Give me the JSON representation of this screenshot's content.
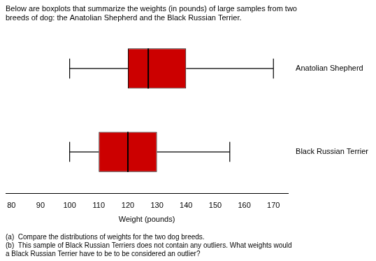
{
  "chart_data": {
    "type": "boxplot",
    "title": [
      "Below are boxplots that summarize the weights (in pounds) of large samples from two",
      "breeds of dog: the Anatolian Shepherd and the Black Russian Terrier."
    ],
    "x_label": "Weight (pounds)",
    "categories": [
      "Anatolian Shepherd",
      "Black Russian Terrier"
    ],
    "stats": [
      {
        "whisker_low": 100,
        "q1": 120,
        "median": 127,
        "q3": 140,
        "whisker_high": 170
      },
      {
        "whisker_low": 100,
        "q1": 110,
        "median": 120,
        "q3": 130,
        "whisker_high": 155
      }
    ],
    "color": "#cc0000",
    "xlim": [
      78,
      175
    ],
    "xticks": [
      80,
      90,
      100,
      110,
      120,
      130,
      140,
      150,
      160,
      170
    ],
    "grid": false,
    "legend": false,
    "annotations": [
      "(a)  Compare the distributions of weights for the two dog breeds.",
      "(b)  This sample of Black Russian Terriers does not contain any outliers. What weights would\na Black Russian Terrier have to be to be considered an outlier?"
    ]
  }
}
